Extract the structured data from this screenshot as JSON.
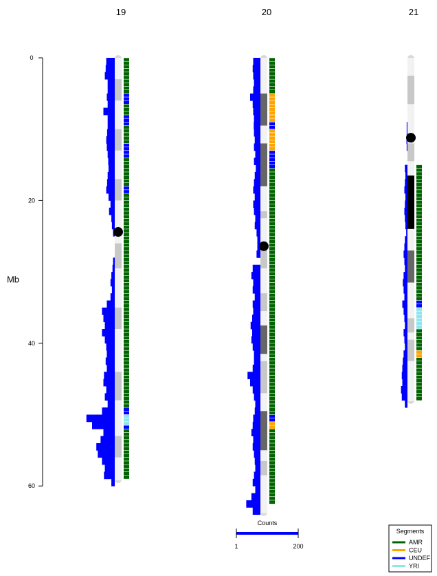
{
  "chart_data": {
    "type": "ideogram",
    "ylabel": "Mb",
    "ylim": [
      0,
      60
    ],
    "yticks": [
      0,
      20,
      40,
      60
    ],
    "chromosomes": [
      {
        "name": "19",
        "length": 59.2,
        "centromere": 24.4,
        "bands": [
          [
            0,
            3,
            "gneg"
          ],
          [
            3,
            6,
            "gpos25"
          ],
          [
            6,
            10,
            "gneg"
          ],
          [
            10,
            13,
            "gpos25"
          ],
          [
            13,
            17,
            "gneg"
          ],
          [
            17,
            20,
            "gpos25"
          ],
          [
            20,
            24,
            "gneg"
          ],
          [
            26,
            29.5,
            "gpos25"
          ],
          [
            29.5,
            35,
            "gneg"
          ],
          [
            35,
            38,
            "gpos25"
          ],
          [
            38,
            44,
            "gneg"
          ],
          [
            44,
            48,
            "gpos25"
          ],
          [
            48,
            53,
            "gneg"
          ],
          [
            53,
            56,
            "gpos25"
          ],
          [
            56,
            59.2,
            "gneg"
          ]
        ],
        "counts": [
          [
            0.5,
            30
          ],
          [
            1.5,
            32
          ],
          [
            2.5,
            35
          ],
          [
            3.5,
            25
          ],
          [
            4.5,
            25
          ],
          [
            5.5,
            28
          ],
          [
            6.5,
            25
          ],
          [
            7.5,
            40
          ],
          [
            8.5,
            25
          ],
          [
            9.5,
            25
          ],
          [
            10.5,
            27
          ],
          [
            11.5,
            30
          ],
          [
            12.5,
            28
          ],
          [
            13.5,
            25
          ],
          [
            14.5,
            23
          ],
          [
            15.5,
            22
          ],
          [
            16.5,
            25
          ],
          [
            17.5,
            27
          ],
          [
            18.5,
            30
          ],
          [
            19.5,
            22
          ],
          [
            20.5,
            15
          ],
          [
            21.5,
            20
          ],
          [
            22.5,
            12
          ],
          [
            23.5,
            10
          ],
          [
            24.5,
            6
          ],
          [
            28.5,
            6
          ],
          [
            29.5,
            8
          ],
          [
            30.5,
            12
          ],
          [
            31.5,
            15
          ],
          [
            32.5,
            10
          ],
          [
            33.5,
            15
          ],
          [
            34.5,
            28
          ],
          [
            35.5,
            45
          ],
          [
            36.5,
            40
          ],
          [
            37.5,
            35
          ],
          [
            38.5,
            45
          ],
          [
            39.5,
            35
          ],
          [
            40.5,
            30
          ],
          [
            41.5,
            28
          ],
          [
            42.5,
            32
          ],
          [
            43.5,
            28
          ],
          [
            44.5,
            38
          ],
          [
            45.5,
            40
          ],
          [
            46.5,
            30
          ],
          [
            47.5,
            35
          ],
          [
            48.5,
            25
          ],
          [
            49.5,
            45
          ],
          [
            50.5,
            100
          ],
          [
            51.5,
            80
          ],
          [
            52.5,
            40
          ],
          [
            53.5,
            50
          ],
          [
            54.5,
            65
          ],
          [
            55.5,
            60
          ],
          [
            56.5,
            45
          ],
          [
            57.5,
            35
          ],
          [
            58.5,
            38
          ],
          [
            59.5,
            12
          ]
        ],
        "segments": [
          {
            "start": 0,
            "end": 5,
            "ancestry": "AMR"
          },
          {
            "start": 5,
            "end": 6.5,
            "ancestry": "UNDEF"
          },
          {
            "start": 6.5,
            "end": 8,
            "ancestry": "AMR"
          },
          {
            "start": 8,
            "end": 9.5,
            "ancestry": "UNDEF"
          },
          {
            "start": 9.5,
            "end": 12,
            "ancestry": "AMR"
          },
          {
            "start": 12,
            "end": 14,
            "ancestry": "UNDEF"
          },
          {
            "start": 14,
            "end": 18,
            "ancestry": "AMR"
          },
          {
            "start": 18,
            "end": 19,
            "ancestry": "UNDEF"
          },
          {
            "start": 19,
            "end": 49,
            "ancestry": "AMR"
          },
          {
            "start": 49,
            "end": 50,
            "ancestry": "UNDEF"
          },
          {
            "start": 50,
            "end": 51.5,
            "ancestry": "YRI"
          },
          {
            "start": 51.5,
            "end": 52,
            "ancestry": "UNDEF"
          },
          {
            "start": 52,
            "end": 59,
            "ancestry": "AMR"
          }
        ]
      },
      {
        "name": "20",
        "length": 63.8,
        "centromere": 26.4,
        "bands": [
          [
            0,
            5,
            "gneg"
          ],
          [
            5,
            9.5,
            "gpos75"
          ],
          [
            9.5,
            12,
            "gneg"
          ],
          [
            12,
            18,
            "gpos75"
          ],
          [
            18,
            21.5,
            "gneg"
          ],
          [
            21.5,
            22.5,
            "gpos25"
          ],
          [
            22.5,
            25.5,
            "gneg"
          ],
          [
            27,
            29.5,
            "gpos25"
          ],
          [
            29.5,
            33,
            "gneg"
          ],
          [
            33,
            35.5,
            "gpos25"
          ],
          [
            35.5,
            37.5,
            "gneg"
          ],
          [
            37.5,
            41.5,
            "gpos75"
          ],
          [
            41.5,
            42.5,
            "gneg"
          ],
          [
            42.5,
            47,
            "gpos25"
          ],
          [
            47,
            49.5,
            "gneg"
          ],
          [
            49.5,
            55,
            "gpos75"
          ],
          [
            55,
            56.5,
            "gneg"
          ],
          [
            56.5,
            58.5,
            "gpos25"
          ],
          [
            58.5,
            63.8,
            "gneg"
          ]
        ],
        "counts": [
          [
            0.5,
            28
          ],
          [
            1.5,
            30
          ],
          [
            2.5,
            28
          ],
          [
            3.5,
            25
          ],
          [
            4.5,
            28
          ],
          [
            5.5,
            40
          ],
          [
            6.5,
            30
          ],
          [
            7.5,
            28
          ],
          [
            8.5,
            25
          ],
          [
            9.5,
            26
          ],
          [
            10.5,
            25
          ],
          [
            11.5,
            22
          ],
          [
            12.5,
            25
          ],
          [
            13.5,
            20
          ],
          [
            14.5,
            25
          ],
          [
            15.5,
            18
          ],
          [
            16.5,
            22
          ],
          [
            17.5,
            25
          ],
          [
            18.5,
            28
          ],
          [
            19.5,
            22
          ],
          [
            20.5,
            28
          ],
          [
            21.5,
            25
          ],
          [
            22.5,
            20
          ],
          [
            23.5,
            22
          ],
          [
            24.5,
            15
          ],
          [
            25.5,
            12
          ],
          [
            26.5,
            12
          ],
          [
            27.5,
            15
          ],
          [
            29.5,
            30
          ],
          [
            30.5,
            35
          ],
          [
            31.5,
            28
          ],
          [
            32.5,
            30
          ],
          [
            33.5,
            22
          ],
          [
            34.5,
            30
          ],
          [
            35.5,
            28
          ],
          [
            36.5,
            32
          ],
          [
            37.5,
            38
          ],
          [
            38.5,
            32
          ],
          [
            39.5,
            35
          ],
          [
            40.5,
            30
          ],
          [
            41.5,
            25
          ],
          [
            42.5,
            25
          ],
          [
            43.5,
            30
          ],
          [
            44.5,
            50
          ],
          [
            45.5,
            40
          ],
          [
            46.5,
            30
          ],
          [
            47.5,
            25
          ],
          [
            48.5,
            20
          ],
          [
            49.5,
            22
          ],
          [
            50.5,
            28
          ],
          [
            51.5,
            30
          ],
          [
            52.5,
            35
          ],
          [
            53.5,
            28
          ],
          [
            54.5,
            30
          ],
          [
            55.5,
            25
          ],
          [
            56.5,
            22
          ],
          [
            57.5,
            20
          ],
          [
            58.5,
            25
          ],
          [
            59.5,
            30
          ],
          [
            60.5,
            20
          ],
          [
            61.5,
            35
          ],
          [
            62.5,
            55
          ],
          [
            63.5,
            30
          ]
        ],
        "segments": [
          {
            "start": 0,
            "end": 5,
            "ancestry": "AMR"
          },
          {
            "start": 5,
            "end": 9,
            "ancestry": "CEU"
          },
          {
            "start": 9,
            "end": 10,
            "ancestry": "UNDEF"
          },
          {
            "start": 10,
            "end": 13,
            "ancestry": "CEU"
          },
          {
            "start": 13,
            "end": 15.5,
            "ancestry": "UNDEF"
          },
          {
            "start": 15.5,
            "end": 50,
            "ancestry": "AMR"
          },
          {
            "start": 50,
            "end": 51,
            "ancestry": "UNDEF"
          },
          {
            "start": 51,
            "end": 52,
            "ancestry": "CEU"
          },
          {
            "start": 52,
            "end": 62.5,
            "ancestry": "AMR"
          }
        ]
      },
      {
        "name": "21",
        "length": 48.1,
        "centromere": 11.2,
        "bands": [
          [
            0,
            2.5,
            "gneg"
          ],
          [
            2.5,
            6.5,
            "gpos25"
          ],
          [
            6.5,
            10.5,
            "gneg"
          ],
          [
            12,
            14.5,
            "gpos25"
          ],
          [
            14.5,
            16.5,
            "gneg"
          ],
          [
            16.5,
            24,
            "gpos100"
          ],
          [
            24,
            27,
            "gneg"
          ],
          [
            27,
            31.5,
            "gpos75"
          ],
          [
            31.5,
            36.5,
            "gneg"
          ],
          [
            36.5,
            38.5,
            "gpos25"
          ],
          [
            38.5,
            39.5,
            "gneg"
          ],
          [
            39.5,
            42.5,
            "gpos25"
          ],
          [
            42.5,
            48.1,
            "gneg"
          ]
        ],
        "counts": [
          [
            9.5,
            3
          ],
          [
            10.5,
            3
          ],
          [
            11.5,
            4
          ],
          [
            12.5,
            3
          ],
          [
            15.5,
            10
          ],
          [
            16.5,
            8
          ],
          [
            17.5,
            10
          ],
          [
            18.5,
            12
          ],
          [
            19.5,
            8
          ],
          [
            20.5,
            10
          ],
          [
            21.5,
            12
          ],
          [
            22.5,
            10
          ],
          [
            23.5,
            8
          ],
          [
            24.5,
            5
          ],
          [
            25.5,
            10
          ],
          [
            26.5,
            12
          ],
          [
            27.5,
            15
          ],
          [
            28.5,
            12
          ],
          [
            29.5,
            10
          ],
          [
            30.5,
            15
          ],
          [
            31.5,
            18
          ],
          [
            32.5,
            15
          ],
          [
            33.5,
            12
          ],
          [
            34.5,
            20
          ],
          [
            35.5,
            15
          ],
          [
            36.5,
            12
          ],
          [
            37.5,
            10
          ],
          [
            38.5,
            15
          ],
          [
            39.5,
            12
          ],
          [
            40.5,
            10
          ],
          [
            41.5,
            15
          ],
          [
            42.5,
            18
          ],
          [
            43.5,
            20
          ],
          [
            44.5,
            22
          ],
          [
            45.5,
            20
          ],
          [
            46.5,
            25
          ],
          [
            47.5,
            22
          ],
          [
            48.5,
            10
          ]
        ],
        "segments": [
          {
            "start": 15,
            "end": 34,
            "ancestry": "AMR"
          },
          {
            "start": 34,
            "end": 35,
            "ancestry": "UNDEF"
          },
          {
            "start": 35,
            "end": 38,
            "ancestry": "YRI"
          },
          {
            "start": 38,
            "end": 41,
            "ancestry": "AMR"
          },
          {
            "start": 41,
            "end": 42,
            "ancestry": "CEU"
          },
          {
            "start": 42,
            "end": 48,
            "ancestry": "AMR"
          }
        ]
      }
    ],
    "count_scale": {
      "title": "Counts",
      "min": 1,
      "max": 200,
      "color": "#0000ff"
    },
    "legend": {
      "title": "Segments",
      "placement": "bottom-right",
      "entries": [
        {
          "name": "AMR",
          "color": "#006400"
        },
        {
          "name": "CEU",
          "color": "#ffa500"
        },
        {
          "name": "UNDEF",
          "color": "#0000ff"
        },
        {
          "name": "YRI",
          "color": "#8ee5ee"
        }
      ]
    },
    "band_colors": {
      "gneg": "#f2f2f2",
      "gpos25": "#c8c8c8",
      "gpos50": "#999999",
      "gpos75": "#666666",
      "gpos100": "#000000",
      "acen": "#d9d9d9"
    }
  }
}
